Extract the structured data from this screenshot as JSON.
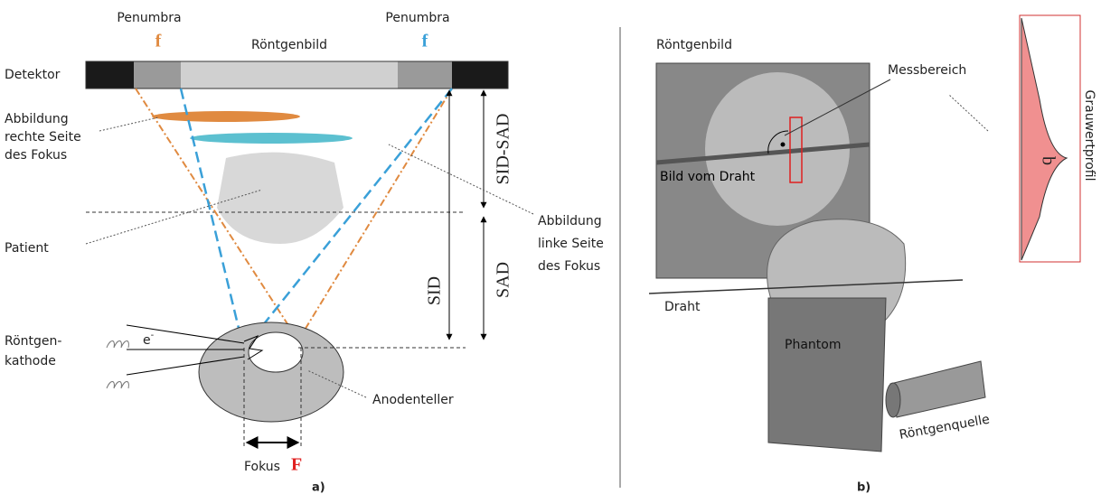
{
  "panel_a": {
    "penumbra_left": "Penumbra",
    "f_left": "f",
    "penumbra_right": "Penumbra",
    "f_right": "f",
    "image_label": "Röntgenbild",
    "detector": "Detektor",
    "image_right_side": [
      "Abbildung",
      "rechte Seite",
      "des Fokus"
    ],
    "sid_sad": "SID-SAD",
    "patient": "Patient",
    "image_left_side": [
      "Abbildung",
      "linke Seite",
      "des Fokus"
    ],
    "sid": "SID",
    "sad": "SAD",
    "cathode": [
      "Röntgen-",
      "kathode"
    ],
    "electron": {
      "base": "e",
      "sup": "-"
    },
    "anode": "Anodenteller",
    "focus": "Fokus",
    "focus_symbol": "F",
    "caption": "a)"
  },
  "panel_b": {
    "image_label": "Röntgenbild",
    "measure_area": "Messbereich",
    "profile": "Grauwertprofil",
    "profile_b": "b",
    "wire_image": "Bild vom Draht",
    "wire": "Draht",
    "phantom": "Phantom",
    "source": "Röntgenquelle",
    "caption": "b)"
  }
}
